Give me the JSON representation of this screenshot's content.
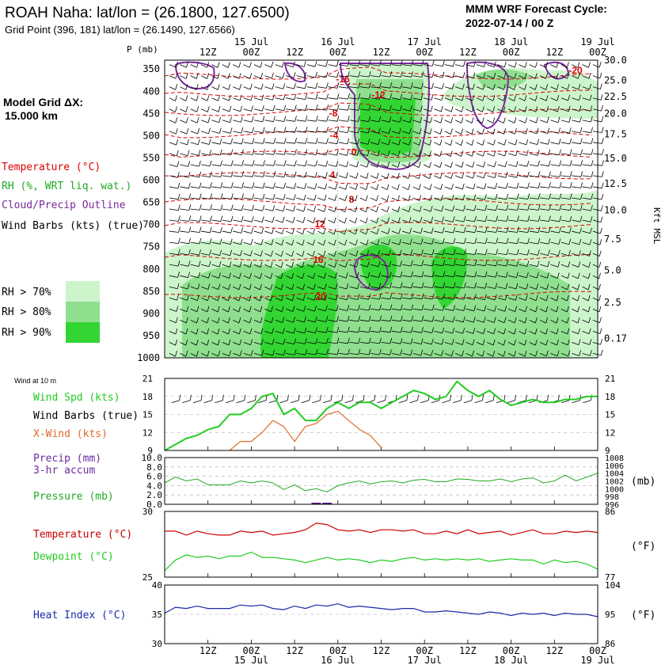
{
  "header": {
    "station_title": "ROAH Naha:  lat/lon = (26.1800, 127.6500)",
    "grid_point": "Grid Point (396, 181) lat/lon = (26.1490, 127.6566)",
    "cycle_title": "MMM WRF Forecast Cycle:",
    "cycle_time": "2022-07-14 / 00  Z"
  },
  "model_grid": {
    "label": "Model Grid ΔX:",
    "value": "15.000 km"
  },
  "legend": {
    "temperature": "Temperature (°C)",
    "rh": "RH (%, WRT liq. wat.)",
    "cloud": "Cloud/Precip Outline",
    "wind_barbs": "Wind Barbs (kts) (true)",
    "rh_levels": [
      "RH > 70%",
      "RH > 80%",
      "RH > 90%"
    ],
    "rh_colors": [
      "#ccf5cc",
      "#8fdf8f",
      "#33d533"
    ]
  },
  "colors": {
    "temperature": "#dd0000",
    "rh_line": "#22cc22",
    "cloud": "#7a2a9e",
    "wind_spd": "#22cc22",
    "x_wind": "#e06a2a",
    "precip": "#5a1a8a",
    "pressure": "#22aa22",
    "temp_line": "#cc0000",
    "dew_line": "#22cc22",
    "heat_line": "#1a2aaa"
  },
  "time_axis": {
    "day_labels": [
      "15 Jul",
      "16 Jul",
      "17 Jul",
      "18 Jul",
      "19 Jul"
    ],
    "hour_labels": [
      "12Z",
      "00Z",
      "12Z",
      "00Z",
      "12Z",
      "00Z",
      "12Z",
      "00Z",
      "12Z",
      "00Z"
    ]
  },
  "cross_section": {
    "p_label": "P (mb)",
    "pressure_ticks": [
      "350",
      "400",
      "450",
      "500",
      "550",
      "600",
      "650",
      "700",
      "750",
      "800",
      "850",
      "900",
      "950",
      "1000"
    ],
    "height_ticks": [
      "30.0",
      "25.0",
      "22.5",
      "20.0",
      "17.5",
      "15.0",
      "12.5",
      "10.0",
      "7.5",
      "5.0",
      "2.5",
      "0.17"
    ],
    "height_unit": "Kft MSL",
    "temp_contour_labels": [
      "-16",
      "-12",
      "-8",
      "-4",
      "0",
      "4",
      "8",
      "12",
      "16",
      "20",
      "-20"
    ]
  },
  "chart_data": [
    {
      "type": "line",
      "title": "Wind at 10 m",
      "ylim": [
        9,
        21
      ],
      "y_ticks_left": [
        "21",
        "18",
        "15",
        "12",
        "9"
      ],
      "y_ticks_right": [
        "21",
        "18",
        "15",
        "12",
        "9"
      ],
      "series": [
        {
          "name": "Wind Spd (kts)",
          "label": "Wind Spd (kts)",
          "hours": [
            0,
            3,
            6,
            9,
            12,
            15,
            18,
            21,
            24,
            27,
            30,
            33,
            36,
            39,
            42,
            45,
            48,
            51,
            54,
            57,
            60,
            63,
            66,
            69,
            72,
            75,
            78,
            81,
            84,
            87,
            90,
            93,
            96,
            99,
            102,
            105,
            108,
            111,
            114,
            117,
            120
          ],
          "values": [
            9,
            10,
            11,
            11.5,
            12.5,
            13,
            15,
            15,
            16,
            18,
            18.5,
            15,
            16,
            14,
            14,
            16,
            17,
            16,
            17,
            17,
            16,
            17,
            18,
            19,
            18.5,
            17.5,
            18,
            20.5,
            19,
            18,
            19,
            17.5,
            16.5,
            17,
            17.5,
            17,
            17,
            17.5,
            17.5,
            18,
            18
          ]
        },
        {
          "name": "X-Wind (kts)",
          "label": "X-Wind (kts)",
          "hours": [
            18,
            21,
            24,
            27,
            30,
            33,
            36,
            39,
            42,
            45,
            48,
            51,
            54,
            57,
            60
          ],
          "values": [
            9,
            10.5,
            10.5,
            12,
            14,
            13,
            10.5,
            13,
            13.5,
            15,
            15.5,
            14,
            12.5,
            11.5,
            9.5
          ]
        }
      ],
      "barb_label": "Wind Barbs (true)"
    },
    {
      "type": "line",
      "title": "Precip / Pressure",
      "precip_label": "Precip (mm)",
      "precip_label2": "3-hr accum",
      "precip_ticks": [
        "10.0",
        "8.0",
        "6.0",
        "4.0",
        "2.0",
        "0.0"
      ],
      "pressure_label": "Pressure (mb)",
      "pressure_ticks": [
        "1008",
        "1006",
        "1004",
        "1002",
        "1000",
        "998",
        "996"
      ],
      "pressure_unit": "(mb)",
      "pressure_ylim": [
        996,
        1008
      ],
      "precip_bars": [
        {
          "hour": 42,
          "value": 0.3
        },
        {
          "hour": 45,
          "value": 0.3
        }
      ],
      "pressure_series": {
        "name": "Pressure (mb)",
        "hours": [
          0,
          3,
          6,
          9,
          12,
          15,
          18,
          21,
          24,
          27,
          30,
          33,
          36,
          39,
          42,
          45,
          48,
          51,
          54,
          57,
          60,
          63,
          66,
          69,
          72,
          75,
          78,
          81,
          84,
          87,
          90,
          93,
          96,
          99,
          102,
          105,
          108,
          111,
          114,
          117,
          120
        ],
        "values": [
          1001.5,
          1003,
          1002,
          1002.5,
          1001,
          1001,
          1001,
          1002,
          1001.5,
          1002,
          1001.5,
          999.8,
          1001,
          999.5,
          1000,
          999.2,
          1000.8,
          1001.5,
          1002,
          1001.2,
          1001.8,
          1002,
          1001.5,
          1002.2,
          1002.4,
          1001.8,
          1001.8,
          1002.5,
          1002.4,
          1002,
          1002,
          1002.5,
          1001.8,
          1002.5,
          1002.8,
          1001.5,
          1002,
          1003.5,
          1002,
          1003,
          1004
        ]
      }
    },
    {
      "type": "line",
      "title": "Temperature / Dewpoint",
      "ylim": [
        25,
        30
      ],
      "y_ticks_left": [
        "30",
        "25"
      ],
      "y_ticks_right": [
        "86",
        "77"
      ],
      "unit_right": "(°F)",
      "series": [
        {
          "name": "Temperature (°C)",
          "label": "Temperature (°C)",
          "hours": [
            0,
            3,
            6,
            9,
            12,
            15,
            18,
            21,
            24,
            27,
            30,
            33,
            36,
            39,
            42,
            45,
            48,
            51,
            54,
            57,
            60,
            63,
            66,
            69,
            72,
            75,
            78,
            81,
            84,
            87,
            90,
            93,
            96,
            99,
            102,
            105,
            108,
            111,
            114,
            117,
            120
          ],
          "values": [
            28.5,
            28.5,
            28.2,
            28.5,
            28.3,
            28.2,
            28.2,
            28.5,
            28.4,
            28.5,
            28.2,
            28.3,
            28.4,
            28.6,
            29.1,
            29.0,
            28.6,
            28.5,
            28.6,
            28.4,
            28.6,
            28.6,
            28.5,
            28.6,
            28.3,
            28.3,
            28.5,
            28.3,
            28.6,
            28.3,
            28.4,
            28.5,
            28.2,
            28.4,
            28.6,
            28.3,
            28.3,
            28.5,
            28.4,
            28.5,
            28.4
          ]
        },
        {
          "name": "Dewpoint (°C)",
          "label": "Dewpoint (°C)",
          "hours": [
            0,
            3,
            6,
            9,
            12,
            15,
            18,
            21,
            24,
            27,
            30,
            33,
            36,
            39,
            42,
            45,
            48,
            51,
            54,
            57,
            60,
            63,
            66,
            69,
            72,
            75,
            78,
            81,
            84,
            87,
            90,
            93,
            96,
            99,
            102,
            105,
            108,
            111,
            114,
            117,
            120
          ],
          "values": [
            25.5,
            26.3,
            26.7,
            26.5,
            26.6,
            26.4,
            26.6,
            26.6,
            26.9,
            26.5,
            26.5,
            26.4,
            26.3,
            26.1,
            26.3,
            26.5,
            26.3,
            26.4,
            26.3,
            26.1,
            26.3,
            26.2,
            26.4,
            26.5,
            26.3,
            26.4,
            26.3,
            26.4,
            26.3,
            26.4,
            26.2,
            26.3,
            26.4,
            26.3,
            26.3,
            26.0,
            26.3,
            26.1,
            26.2,
            26.0,
            25.6
          ]
        }
      ]
    },
    {
      "type": "line",
      "title": "Heat Index",
      "ylim": [
        30,
        40
      ],
      "y_ticks_left": [
        "40",
        "35",
        "30"
      ],
      "y_ticks_right": [
        "104",
        "95",
        "86"
      ],
      "unit_right": "(°F)",
      "series": [
        {
          "name": "Heat Index (°C)",
          "label": "Heat Index (°C)",
          "hours": [
            0,
            3,
            6,
            9,
            12,
            15,
            18,
            21,
            24,
            27,
            30,
            33,
            36,
            39,
            42,
            45,
            48,
            51,
            54,
            57,
            60,
            63,
            66,
            69,
            72,
            75,
            78,
            81,
            84,
            87,
            90,
            93,
            96,
            99,
            102,
            105,
            108,
            111,
            114,
            117,
            120
          ],
          "values": [
            35.2,
            36.2,
            36.0,
            36.4,
            36.0,
            36.0,
            36.0,
            36.6,
            36.4,
            36.6,
            36.0,
            35.8,
            36.4,
            36.0,
            36.6,
            36.4,
            36.8,
            36.2,
            36.4,
            36.2,
            36.0,
            35.8,
            36.0,
            36.0,
            35.4,
            35.4,
            35.6,
            35.4,
            35.2,
            35.0,
            35.4,
            35.2,
            34.8,
            35.2,
            35.0,
            35.2,
            34.8,
            35.2,
            35.0,
            35.0,
            34.6
          ]
        }
      ]
    }
  ]
}
